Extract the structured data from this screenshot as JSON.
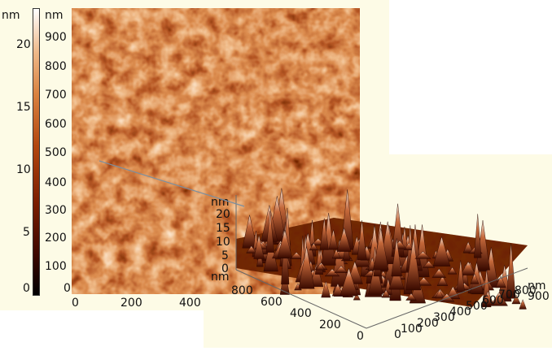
{
  "colorbar": {
    "unit": "nm",
    "ticks": [
      "20",
      "15",
      "10",
      "5",
      "0"
    ]
  },
  "map2d": {
    "y_unit": "nm",
    "y_ticks": [
      "900",
      "800",
      "700",
      "600",
      "500",
      "400",
      "300",
      "200",
      "100",
      "0"
    ],
    "x_ticks": [
      "0",
      "200",
      "400"
    ]
  },
  "surface3d": {
    "z_unit": "nm",
    "z_ticks": [
      "20",
      "15",
      "10",
      "5",
      "0"
    ],
    "y_unit": "nm",
    "y_ticks": [
      "800",
      "600",
      "400",
      "200",
      "0"
    ],
    "x_unit": "nm",
    "x_ticks": [
      "0",
      "100",
      "200",
      "300",
      "400",
      "500",
      "600",
      "700",
      "800",
      "900"
    ]
  },
  "colors": {
    "background_panel": "#fdfbe6",
    "height_low": "#000000",
    "height_mid": "#b2460e",
    "height_high": "#ffffff"
  }
}
